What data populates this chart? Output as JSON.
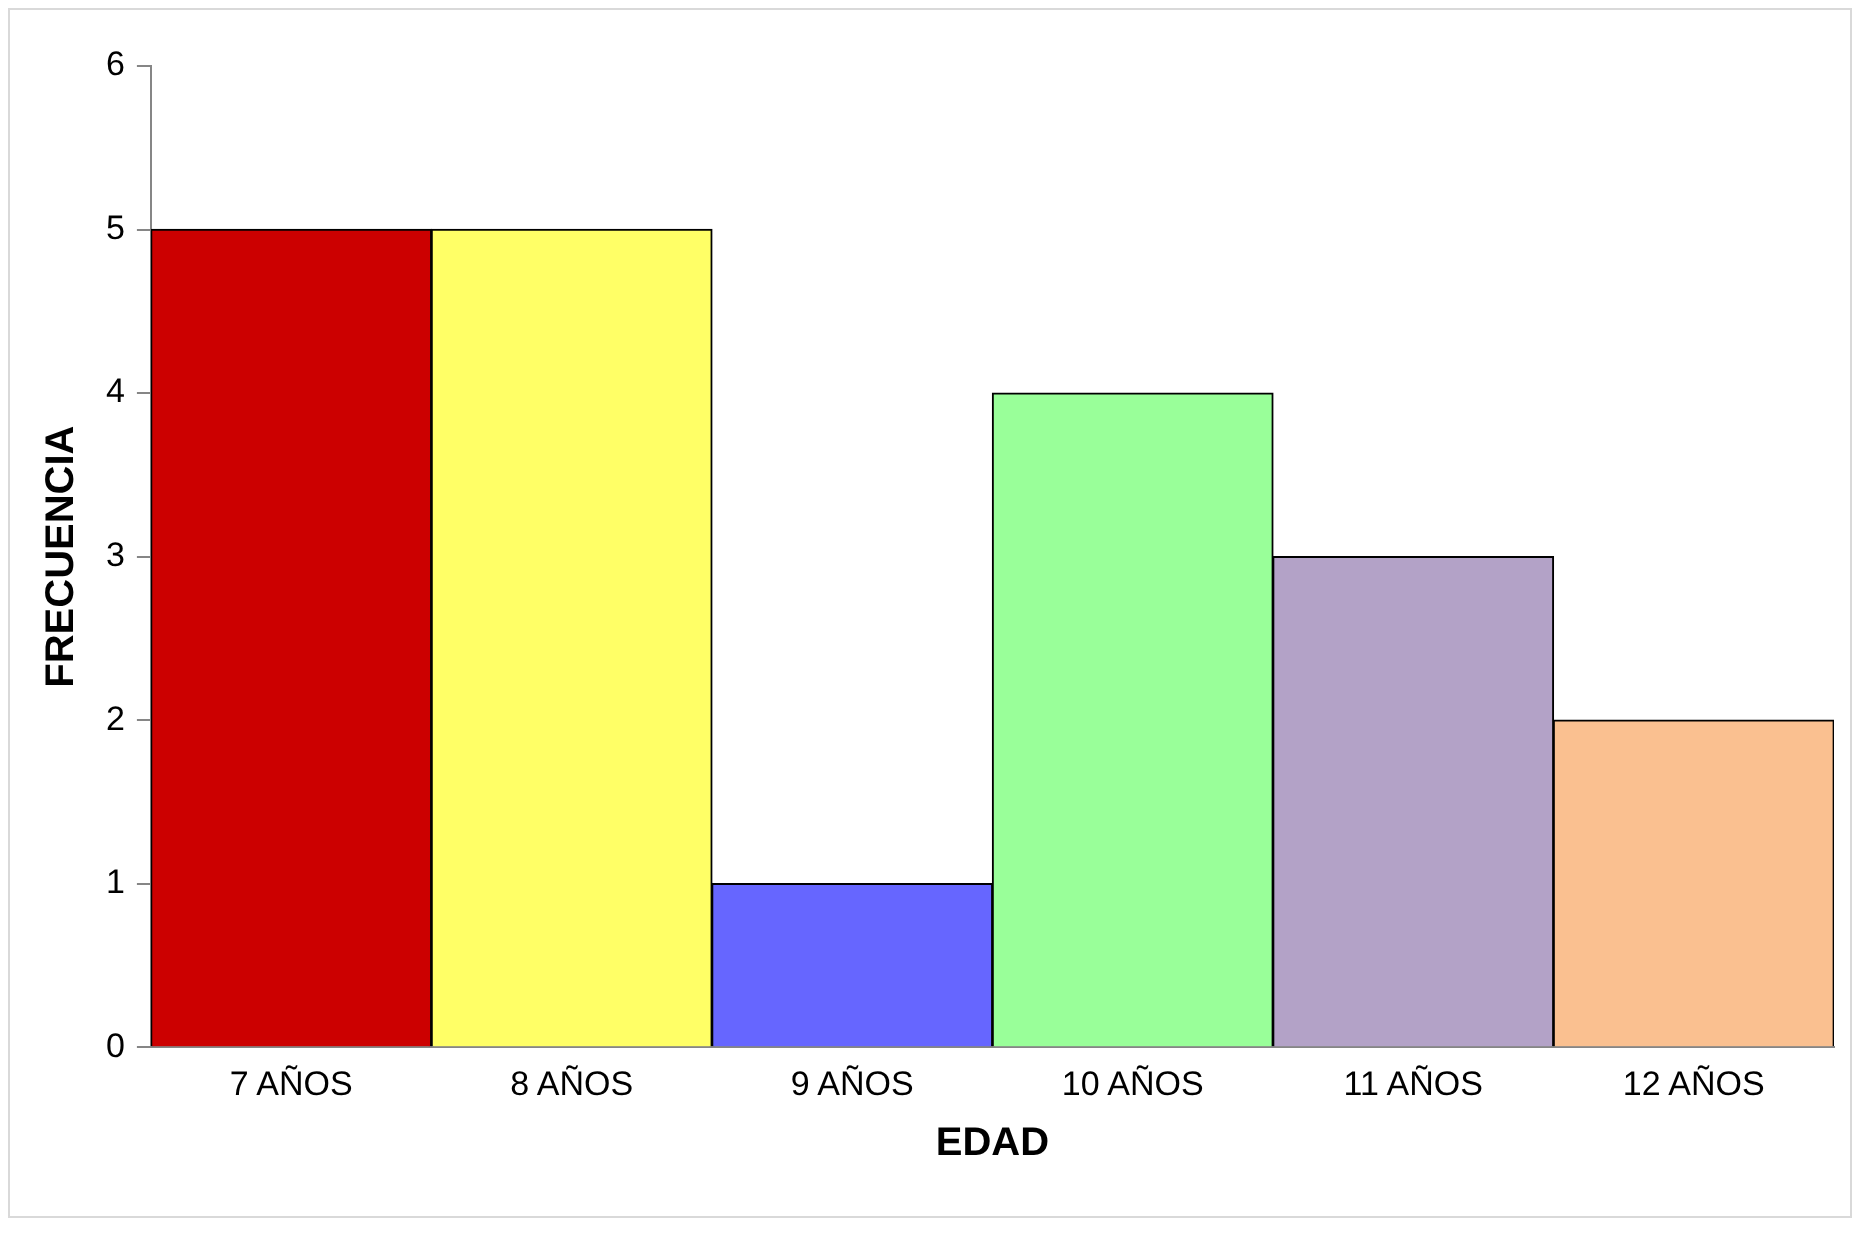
{
  "chart_data": {
    "type": "bar",
    "xlabel": "EDAD",
    "ylabel": "FRECUENCIA",
    "categories": [
      "7 AÑOS",
      "8 AÑOS",
      "9 AÑOS",
      "10 AÑOS",
      "11 AÑOS",
      "12 AÑOS"
    ],
    "values": [
      5,
      5,
      1,
      4,
      3,
      2
    ],
    "colors": [
      "#cc0000",
      "#ffff66",
      "#6666ff",
      "#99ff99",
      "#b3a2c7",
      "#fac090"
    ],
    "ylim": [
      0,
      6
    ],
    "yticks": [
      0,
      1,
      2,
      3,
      4,
      5,
      6
    ],
    "grid": false,
    "legend": false
  }
}
